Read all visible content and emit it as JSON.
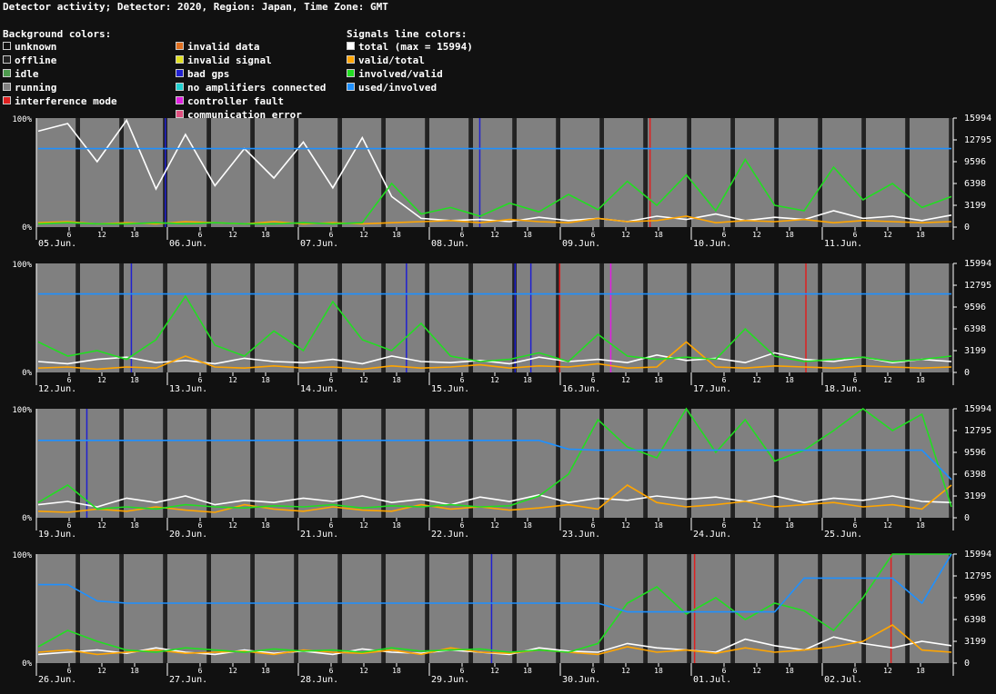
{
  "title": "Detector activity; Detector: 2020, Region: Japan, Time Zone: GMT",
  "legend": {
    "background_header": "Background colors:",
    "background": [
      {
        "label": "unknown",
        "color": "#111111"
      },
      {
        "label": "offline",
        "color": "#222222"
      },
      {
        "label": "idle",
        "color": "#4d9a4d"
      },
      {
        "label": "running",
        "color": "#808080"
      },
      {
        "label": "interference mode",
        "color": "#e02020"
      },
      {
        "label": "invalid data",
        "color": "#e07020"
      },
      {
        "label": "invalid signal",
        "color": "#e0e020"
      },
      {
        "label": "bad gps",
        "color": "#2020d0"
      },
      {
        "label": "no amplifiers connected",
        "color": "#20d0d0"
      },
      {
        "label": "controller fault",
        "color": "#e020e0"
      },
      {
        "label": "communication error",
        "color": "#e05080"
      }
    ],
    "signals_header": "Signals line colors:",
    "signals": [
      {
        "label": "total (max = 15994)",
        "color": "#ffffff"
      },
      {
        "label": "valid/total",
        "color": "#ffa500"
      },
      {
        "label": "involved/valid",
        "color": "#22dd22"
      },
      {
        "label": "used/involved",
        "color": "#1e90ff"
      }
    ]
  },
  "chart_data": {
    "type": "line",
    "left_axis": {
      "ticks": [
        "100%",
        "0%"
      ],
      "ylim": [
        0,
        100
      ]
    },
    "right_axis": {
      "ticks": [
        "15994",
        "12795",
        "9596",
        "6398",
        "3199",
        "0"
      ],
      "ylim": [
        0,
        15994
      ]
    },
    "hour_ticks": [
      "6",
      "12",
      "18"
    ],
    "panels": [
      {
        "days": [
          "05.Jun.",
          "06.Jun.",
          "07.Jun.",
          "08.Jun.",
          "09.Jun.",
          "10.Jun.",
          "11.Jun."
        ],
        "total_pct": [
          88,
          95,
          60,
          98,
          35,
          85,
          38,
          72,
          45,
          78,
          36,
          82,
          28,
          8,
          6,
          7,
          5,
          9,
          6,
          8,
          5,
          10,
          7,
          12,
          6,
          9,
          7,
          15,
          8,
          10,
          6,
          11
        ],
        "valid_pct": [
          4,
          5,
          3,
          4,
          3,
          5,
          4,
          3,
          5,
          3,
          4,
          3,
          4,
          5,
          6,
          4,
          7,
          5,
          4,
          8,
          5,
          6,
          10,
          4,
          6,
          5,
          7,
          4,
          6,
          5,
          4,
          5
        ],
        "involved_pct": [
          3,
          4,
          3,
          3,
          4,
          3,
          4,
          3,
          3,
          4,
          3,
          4,
          40,
          12,
          18,
          10,
          22,
          14,
          30,
          16,
          42,
          20,
          48,
          15,
          62,
          20,
          15,
          55,
          25,
          40,
          18,
          28
        ],
        "used_pct": [
          72,
          72,
          72,
          72,
          72,
          72,
          72,
          72,
          72,
          72,
          72,
          72,
          72,
          72,
          72,
          72,
          72,
          72,
          72,
          72,
          72,
          72,
          72,
          72,
          72,
          72,
          72,
          72,
          72,
          72,
          72,
          72
        ],
        "events": [
          {
            "day": 0.98,
            "status": "bad gps"
          },
          {
            "day": 3.38,
            "status": "bad gps"
          },
          {
            "day": 4.68,
            "status": "interference mode"
          }
        ]
      },
      {
        "days": [
          "12.Jun.",
          "13.Jun.",
          "14.Jun.",
          "15.Jun.",
          "16.Jun.",
          "17.Jun.",
          "18.Jun."
        ],
        "total_pct": [
          10,
          8,
          12,
          14,
          9,
          11,
          8,
          13,
          10,
          9,
          12,
          8,
          15,
          10,
          9,
          11,
          8,
          14,
          10,
          12,
          9,
          16,
          11,
          13,
          9,
          18,
          12,
          10,
          14,
          9,
          12,
          10
        ],
        "valid_pct": [
          4,
          5,
          3,
          5,
          4,
          15,
          5,
          4,
          6,
          4,
          5,
          3,
          6,
          4,
          5,
          7,
          4,
          6,
          5,
          8,
          4,
          5,
          28,
          5,
          4,
          6,
          5,
          4,
          6,
          5,
          4,
          5
        ],
        "involved_pct": [
          28,
          15,
          20,
          12,
          30,
          70,
          25,
          15,
          38,
          20,
          65,
          30,
          20,
          45,
          15,
          10,
          12,
          18,
          10,
          35,
          15,
          12,
          14,
          12,
          40,
          15,
          10,
          12,
          14,
          10,
          12,
          15
        ],
        "used_pct": [
          72,
          72,
          72,
          72,
          72,
          72,
          72,
          72,
          72,
          72,
          72,
          72,
          72,
          72,
          72,
          72,
          72,
          72,
          72,
          72,
          72,
          72,
          72,
          72,
          72,
          72,
          72,
          72,
          72,
          72,
          72,
          72
        ],
        "events": [
          {
            "day": 0.72,
            "status": "bad gps"
          },
          {
            "day": 2.82,
            "status": "bad gps"
          },
          {
            "day": 3.65,
            "status": "bad gps"
          },
          {
            "day": 3.77,
            "status": "bad gps"
          },
          {
            "day": 3.99,
            "status": "interference mode"
          },
          {
            "day": 4.38,
            "status": "controller fault"
          },
          {
            "day": 5.87,
            "status": "interference mode"
          }
        ]
      },
      {
        "days": [
          "19.Jun.",
          "20.Jun.",
          "21.Jun.",
          "22.Jun.",
          "23.Jun.",
          "24.Jun.",
          "25.Jun."
        ],
        "total_pct": [
          12,
          15,
          10,
          18,
          14,
          20,
          12,
          16,
          14,
          18,
          15,
          20,
          14,
          17,
          12,
          19,
          15,
          21,
          14,
          18,
          16,
          20,
          17,
          19,
          15,
          20,
          14,
          18,
          16,
          20,
          15,
          14
        ],
        "valid_pct": [
          6,
          5,
          8,
          6,
          10,
          7,
          5,
          12,
          8,
          6,
          10,
          7,
          6,
          12,
          8,
          10,
          7,
          9,
          12,
          8,
          30,
          14,
          10,
          12,
          15,
          10,
          12,
          14,
          10,
          12,
          8,
          30
        ],
        "involved_pct": [
          14,
          30,
          8,
          10,
          8,
          12,
          10,
          9,
          11,
          10,
          12,
          9,
          11,
          10,
          12,
          10,
          11,
          20,
          40,
          90,
          65,
          55,
          100,
          60,
          90,
          52,
          62,
          80,
          100,
          80,
          95,
          10
        ],
        "used_pct": [
          71,
          71,
          71,
          71,
          71,
          71,
          71,
          71,
          71,
          71,
          71,
          71,
          71,
          71,
          71,
          71,
          71,
          71,
          63,
          62,
          62,
          62,
          62,
          62,
          62,
          62,
          62,
          62,
          62,
          62,
          62,
          35
        ],
        "events": [
          {
            "day": 0.38,
            "status": "bad gps"
          }
        ]
      },
      {
        "days": [
          "26.Jun.",
          "27.Jun.",
          "28.Jun.",
          "29.Jun.",
          "30.Jun.",
          "01.Jul.",
          "02.Jul."
        ],
        "total_pct": [
          8,
          10,
          12,
          9,
          14,
          10,
          8,
          12,
          9,
          11,
          8,
          13,
          10,
          9,
          12,
          10,
          8,
          14,
          11,
          10,
          18,
          14,
          12,
          10,
          22,
          16,
          12,
          24,
          18,
          14,
          20,
          16
        ],
        "valid_pct": [
          10,
          12,
          8,
          10,
          12,
          9,
          10,
          11,
          8,
          12,
          10,
          9,
          12,
          8,
          14,
          10,
          9,
          12,
          10,
          8,
          15,
          10,
          12,
          9,
          14,
          10,
          12,
          15,
          20,
          35,
          12,
          10
        ],
        "involved_pct": [
          15,
          30,
          20,
          12,
          10,
          14,
          12,
          10,
          13,
          11,
          12,
          10,
          14,
          11,
          12,
          13,
          10,
          12,
          10,
          18,
          55,
          70,
          45,
          60,
          40,
          55,
          48,
          30,
          60,
          100,
          100,
          100
        ],
        "used_pct": [
          72,
          72,
          57,
          55,
          55,
          55,
          55,
          55,
          55,
          55,
          55,
          55,
          55,
          55,
          55,
          55,
          55,
          55,
          55,
          55,
          47,
          47,
          47,
          47,
          47,
          47,
          78,
          78,
          78,
          78,
          55,
          100
        ],
        "events": [
          {
            "day": 3.47,
            "status": "bad gps"
          },
          {
            "day": 5.02,
            "status": "interference mode"
          },
          {
            "day": 6.52,
            "status": "interference mode"
          }
        ]
      }
    ]
  }
}
